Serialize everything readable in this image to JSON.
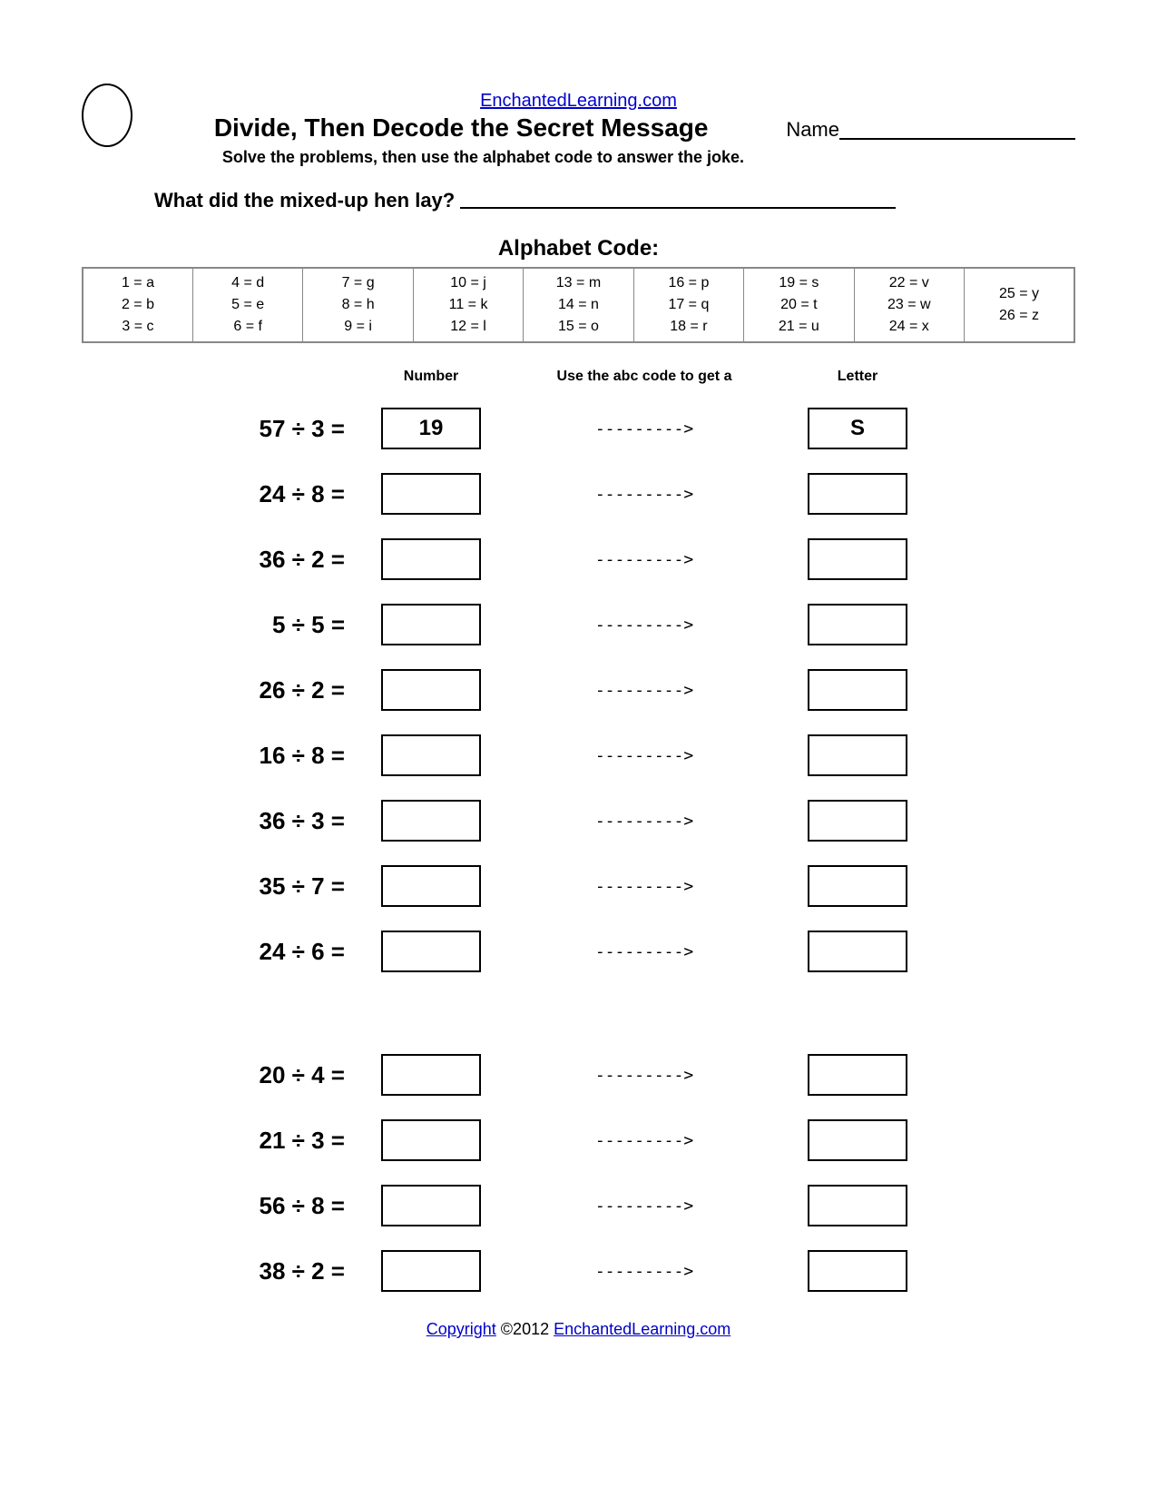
{
  "site": "EnchantedLearning.com",
  "title": "Divide, Then Decode the Secret Message",
  "name_label": "Name",
  "instructions": "Solve the problems, then use the alphabet code to answer the joke.",
  "question": "What did the mixed-up hen lay?",
  "code_title": "Alphabet Code:",
  "code_columns": [
    [
      "1 = a",
      "2 = b",
      "3 = c"
    ],
    [
      "4 = d",
      "5 = e",
      "6 = f"
    ],
    [
      "7 = g",
      "8 = h",
      "9 = i"
    ],
    [
      "10 = j",
      "11 = k",
      "12 = l"
    ],
    [
      "13 = m",
      "14 = n",
      "15 = o"
    ],
    [
      "16 = p",
      "17 = q",
      "18 = r"
    ],
    [
      "19 = s",
      "20 = t",
      "21 = u"
    ],
    [
      "22 = v",
      "23 = w",
      "24 = x"
    ],
    [
      "25 = y",
      "26 = z"
    ]
  ],
  "headers": {
    "number": "Number",
    "arrow": "Use the abc code to get a",
    "letter": "Letter"
  },
  "arrow_text": "--------->",
  "problems_group1": [
    {
      "expr": "57 ÷ 3 =",
      "number": "19",
      "letter": "S"
    },
    {
      "expr": "24 ÷ 8 =",
      "number": "",
      "letter": ""
    },
    {
      "expr": "36 ÷ 2 =",
      "number": "",
      "letter": ""
    },
    {
      "expr": "5 ÷ 5 =",
      "number": "",
      "letter": ""
    },
    {
      "expr": "26 ÷ 2 =",
      "number": "",
      "letter": ""
    },
    {
      "expr": "16 ÷ 8 =",
      "number": "",
      "letter": ""
    },
    {
      "expr": "36 ÷ 3 =",
      "number": "",
      "letter": ""
    },
    {
      "expr": "35 ÷ 7 =",
      "number": "",
      "letter": ""
    },
    {
      "expr": "24 ÷ 6 =",
      "number": "",
      "letter": ""
    }
  ],
  "problems_group2": [
    {
      "expr": "20 ÷ 4 =",
      "number": "",
      "letter": ""
    },
    {
      "expr": "21 ÷ 3 =",
      "number": "",
      "letter": ""
    },
    {
      "expr": "56 ÷ 8 =",
      "number": "",
      "letter": ""
    },
    {
      "expr": "38 ÷ 2 =",
      "number": "",
      "letter": ""
    }
  ],
  "footer": {
    "copyright_link": "Copyright",
    "copyright_text": " ©2012 ",
    "site_link": "EnchantedLearning.com"
  }
}
